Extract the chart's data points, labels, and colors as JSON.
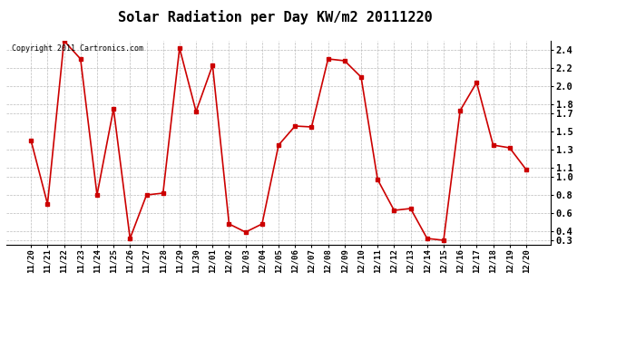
{
  "title": "Solar Radiation per Day KW/m2 20111220",
  "copyright": "Copyright 2011 Cartronics.com",
  "x_labels": [
    "11/20",
    "11/21",
    "11/22",
    "11/23",
    "11/24",
    "11/25",
    "11/26",
    "11/27",
    "11/28",
    "11/29",
    "11/30",
    "12/01",
    "12/02",
    "12/03",
    "12/04",
    "12/05",
    "12/06",
    "12/07",
    "12/08",
    "12/09",
    "12/10",
    "12/11",
    "12/12",
    "12/13",
    "12/14",
    "12/15",
    "12/16",
    "12/17",
    "12/18",
    "12/19",
    "12/20"
  ],
  "y_values": [
    1.4,
    0.7,
    2.5,
    2.3,
    0.8,
    1.75,
    0.32,
    0.8,
    0.82,
    2.42,
    1.72,
    2.23,
    0.48,
    0.39,
    0.48,
    1.35,
    1.56,
    1.55,
    2.3,
    2.28,
    2.1,
    0.97,
    0.63,
    0.65,
    0.32,
    0.3,
    1.73,
    2.04,
    1.35,
    1.32,
    1.08
  ],
  "y_ticks": [
    0.3,
    0.4,
    0.6,
    0.8,
    1.0,
    1.1,
    1.3,
    1.5,
    1.7,
    1.8,
    2.0,
    2.2,
    2.4
  ],
  "line_color": "#cc0000",
  "marker": "s",
  "marker_size": 2.5,
  "background_color": "#ffffff",
  "plot_bg_color": "#ffffff",
  "grid_color": "#bbbbbb",
  "ylim_min": 0.25,
  "ylim_max": 2.5,
  "title_fontsize": 11,
  "tick_fontsize": 6.5,
  "ytick_fontsize": 7.5
}
